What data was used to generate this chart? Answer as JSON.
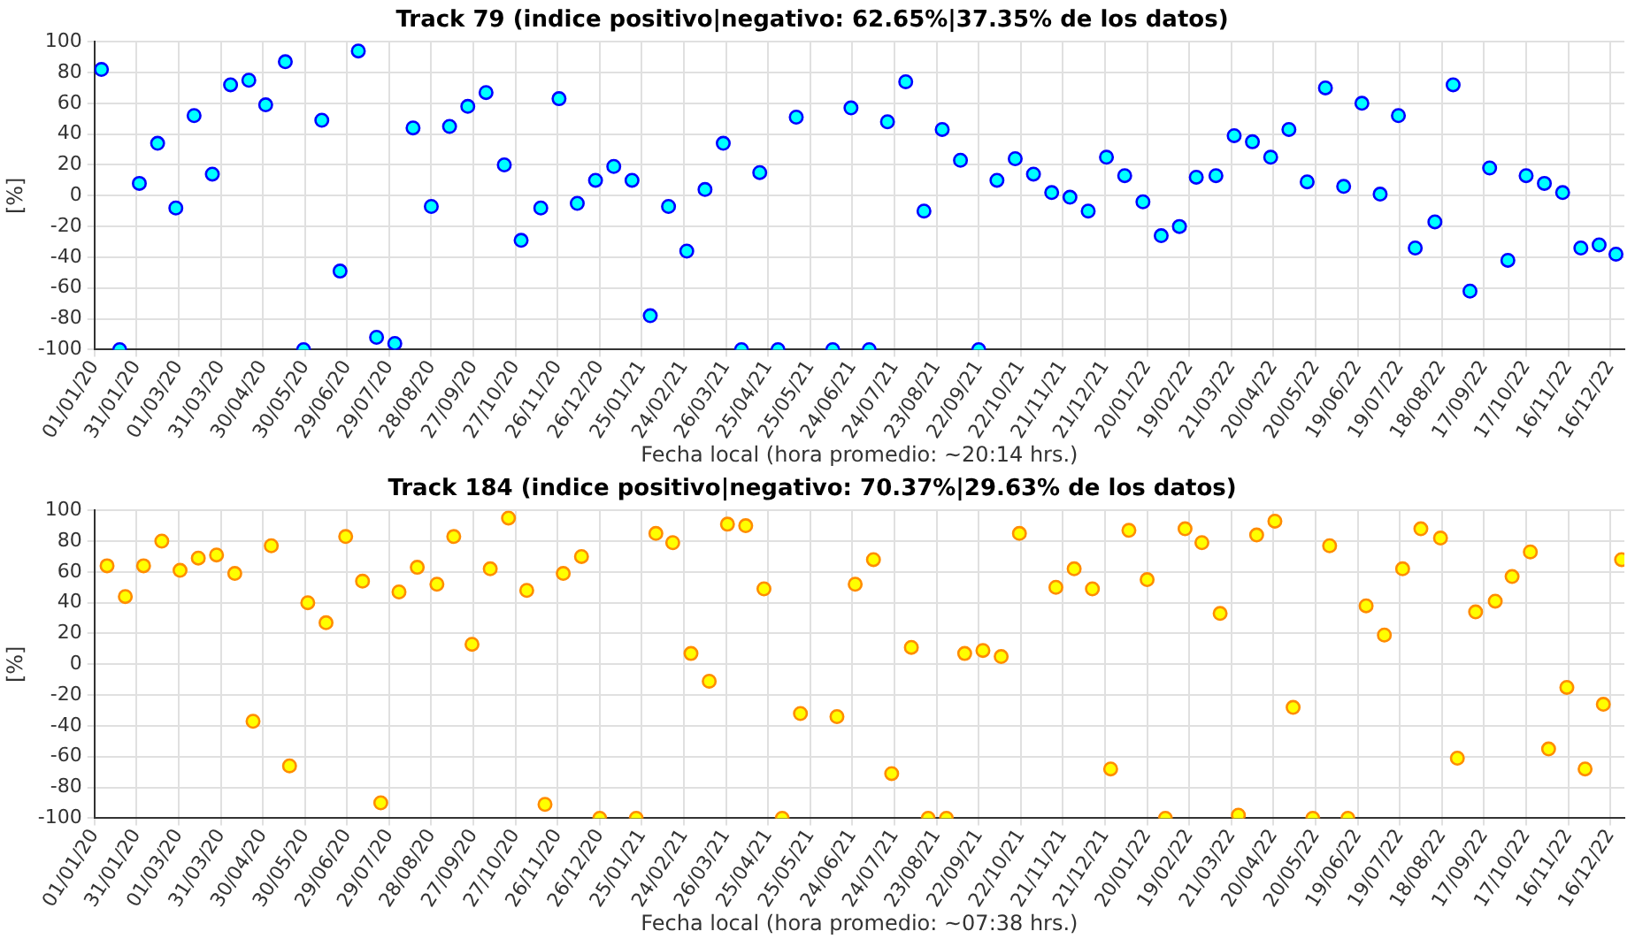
{
  "chart_data": [
    {
      "type": "scatter",
      "title": "Track 79 (indice positivo|negativo: 62.65%|37.35% de los datos)",
      "xlabel": "Fecha local (hora promedio: ~20:14 hrs.)",
      "ylabel": "[%]",
      "grid": true,
      "legend": false,
      "marker": "circle",
      "xlim": [
        "2020-01-01",
        "2022-12-26"
      ],
      "ylim": [
        -100,
        100
      ],
      "yticks": [
        -100,
        -80,
        -60,
        -40,
        -20,
        0,
        20,
        40,
        60,
        80,
        100
      ],
      "xticks": [
        {
          "value": "2020-01-01",
          "label": "01/01/20"
        },
        {
          "value": "2020-01-31",
          "label": "31/01/20"
        },
        {
          "value": "2020-03-01",
          "label": "01/03/20"
        },
        {
          "value": "2020-03-31",
          "label": "31/03/20"
        },
        {
          "value": "2020-04-30",
          "label": "30/04/20"
        },
        {
          "value": "2020-05-30",
          "label": "30/05/20"
        },
        {
          "value": "2020-06-29",
          "label": "29/06/20"
        },
        {
          "value": "2020-07-29",
          "label": "29/07/20"
        },
        {
          "value": "2020-08-28",
          "label": "28/08/20"
        },
        {
          "value": "2020-09-27",
          "label": "27/09/20"
        },
        {
          "value": "2020-10-27",
          "label": "27/10/20"
        },
        {
          "value": "2020-11-26",
          "label": "26/11/20"
        },
        {
          "value": "2020-12-26",
          "label": "26/12/20"
        },
        {
          "value": "2021-01-25",
          "label": "25/01/21"
        },
        {
          "value": "2021-02-24",
          "label": "24/02/21"
        },
        {
          "value": "2021-03-26",
          "label": "26/03/21"
        },
        {
          "value": "2021-04-25",
          "label": "25/04/21"
        },
        {
          "value": "2021-05-25",
          "label": "25/05/21"
        },
        {
          "value": "2021-06-24",
          "label": "24/06/21"
        },
        {
          "value": "2021-07-24",
          "label": "24/07/21"
        },
        {
          "value": "2021-08-23",
          "label": "23/08/21"
        },
        {
          "value": "2021-09-22",
          "label": "22/09/21"
        },
        {
          "value": "2021-10-22",
          "label": "22/10/21"
        },
        {
          "value": "2021-11-21",
          "label": "21/11/21"
        },
        {
          "value": "2021-12-21",
          "label": "21/12/21"
        },
        {
          "value": "2022-01-20",
          "label": "20/01/22"
        },
        {
          "value": "2022-02-19",
          "label": "19/02/22"
        },
        {
          "value": "2022-03-21",
          "label": "21/03/22"
        },
        {
          "value": "2022-04-20",
          "label": "20/04/22"
        },
        {
          "value": "2022-05-20",
          "label": "20/05/22"
        },
        {
          "value": "2022-06-19",
          "label": "19/06/22"
        },
        {
          "value": "2022-07-19",
          "label": "19/07/22"
        },
        {
          "value": "2022-08-18",
          "label": "18/08/22"
        },
        {
          "value": "2022-09-17",
          "label": "17/09/22"
        },
        {
          "value": "2022-10-17",
          "label": "17/10/22"
        },
        {
          "value": "2022-11-16",
          "label": "16/11/22"
        },
        {
          "value": "2022-12-16",
          "label": "16/12/22"
        }
      ],
      "series": [
        {
          "color": "#00ffff",
          "x": [
            "2020-01-06",
            "2020-01-19",
            "2020-02-02",
            "2020-02-15",
            "2020-02-28",
            "2020-03-12",
            "2020-03-25",
            "2020-04-07",
            "2020-04-20",
            "2020-05-02",
            "2020-05-16",
            "2020-05-29",
            "2020-06-11",
            "2020-06-24",
            "2020-07-07",
            "2020-07-20",
            "2020-08-02",
            "2020-08-15",
            "2020-08-28",
            "2020-09-10",
            "2020-09-23",
            "2020-10-06",
            "2020-10-19",
            "2020-10-31",
            "2020-11-14",
            "2020-11-27",
            "2020-12-10",
            "2020-12-23",
            "2021-01-05",
            "2021-01-18",
            "2021-01-31",
            "2021-02-13",
            "2021-02-26",
            "2021-03-11",
            "2021-03-24",
            "2021-04-06",
            "2021-04-19",
            "2021-05-02",
            "2021-05-15",
            "2021-06-10",
            "2021-06-23",
            "2021-07-06",
            "2021-07-19",
            "2021-08-01",
            "2021-08-14",
            "2021-08-27",
            "2021-09-09",
            "2021-09-22",
            "2021-10-05",
            "2021-10-18",
            "2021-10-31",
            "2021-11-13",
            "2021-11-26",
            "2021-12-09",
            "2021-12-22",
            "2022-01-04",
            "2022-01-17",
            "2022-01-30",
            "2022-02-12",
            "2022-02-24",
            "2022-03-10",
            "2022-03-23",
            "2022-04-05",
            "2022-04-18",
            "2022-05-01",
            "2022-05-14",
            "2022-05-27",
            "2022-06-09",
            "2022-06-22",
            "2022-07-05",
            "2022-07-18",
            "2022-07-30",
            "2022-08-13",
            "2022-08-26",
            "2022-09-07",
            "2022-09-21",
            "2022-10-04",
            "2022-10-17",
            "2022-10-30",
            "2022-11-12",
            "2022-11-25",
            "2022-12-08",
            "2022-12-20"
          ],
          "values": [
            82,
            -100,
            8,
            34,
            -8,
            52,
            14,
            72,
            75,
            59,
            87,
            -100,
            49,
            -49,
            94,
            -92,
            -96,
            44,
            -7,
            45,
            58,
            67,
            20,
            -29,
            -8,
            63,
            -5,
            10,
            19,
            10,
            -78,
            -7,
            -36,
            4,
            34,
            -100,
            15,
            -100,
            51,
            -100,
            57,
            -100,
            48,
            74,
            -10,
            43,
            23,
            -100,
            10,
            24,
            14,
            2,
            -1,
            -10,
            25,
            13,
            -4,
            -26,
            -20,
            12,
            13,
            39,
            35,
            25,
            43,
            9,
            70,
            6,
            60,
            1,
            52,
            -34,
            -17,
            72,
            -62,
            18,
            -42,
            13,
            8,
            2,
            -34,
            -32,
            -38
          ]
        }
      ]
    },
    {
      "type": "scatter",
      "title": "Track 184 (indice positivo|negativo: 70.37%|29.63% de los datos)",
      "xlabel": "Fecha local (hora promedio: ~07:38 hrs.)",
      "ylabel": "[%]",
      "grid": true,
      "legend": false,
      "marker": "circle",
      "xlim": [
        "2020-01-01",
        "2022-12-26"
      ],
      "ylim": [
        -100,
        100
      ],
      "yticks": [
        -100,
        -80,
        -60,
        -40,
        -20,
        0,
        20,
        40,
        60,
        80,
        100
      ],
      "xticks": [
        {
          "value": "2020-01-01",
          "label": "01/01/20"
        },
        {
          "value": "2020-01-31",
          "label": "31/01/20"
        },
        {
          "value": "2020-03-01",
          "label": "01/03/20"
        },
        {
          "value": "2020-03-31",
          "label": "31/03/20"
        },
        {
          "value": "2020-04-30",
          "label": "30/04/20"
        },
        {
          "value": "2020-05-30",
          "label": "30/05/20"
        },
        {
          "value": "2020-06-29",
          "label": "29/06/20"
        },
        {
          "value": "2020-07-29",
          "label": "29/07/20"
        },
        {
          "value": "2020-08-28",
          "label": "28/08/20"
        },
        {
          "value": "2020-09-27",
          "label": "27/09/20"
        },
        {
          "value": "2020-10-27",
          "label": "27/10/20"
        },
        {
          "value": "2020-11-26",
          "label": "26/11/20"
        },
        {
          "value": "2020-12-26",
          "label": "26/12/20"
        },
        {
          "value": "2021-01-25",
          "label": "25/01/21"
        },
        {
          "value": "2021-02-24",
          "label": "24/02/21"
        },
        {
          "value": "2021-03-26",
          "label": "26/03/21"
        },
        {
          "value": "2021-04-25",
          "label": "25/04/21"
        },
        {
          "value": "2021-05-25",
          "label": "25/05/21"
        },
        {
          "value": "2021-06-24",
          "label": "24/06/21"
        },
        {
          "value": "2021-07-24",
          "label": "24/07/21"
        },
        {
          "value": "2021-08-23",
          "label": "23/08/21"
        },
        {
          "value": "2021-09-22",
          "label": "22/09/21"
        },
        {
          "value": "2021-10-22",
          "label": "22/10/21"
        },
        {
          "value": "2021-11-21",
          "label": "21/11/21"
        },
        {
          "value": "2021-12-21",
          "label": "21/12/21"
        },
        {
          "value": "2022-01-20",
          "label": "20/01/22"
        },
        {
          "value": "2022-02-19",
          "label": "19/02/22"
        },
        {
          "value": "2022-03-21",
          "label": "21/03/22"
        },
        {
          "value": "2022-04-20",
          "label": "20/04/22"
        },
        {
          "value": "2022-05-20",
          "label": "20/05/22"
        },
        {
          "value": "2022-06-19",
          "label": "19/06/22"
        },
        {
          "value": "2022-07-19",
          "label": "19/07/22"
        },
        {
          "value": "2022-08-18",
          "label": "18/08/22"
        },
        {
          "value": "2022-09-17",
          "label": "17/09/22"
        },
        {
          "value": "2022-10-17",
          "label": "17/10/22"
        },
        {
          "value": "2022-11-16",
          "label": "16/11/22"
        },
        {
          "value": "2022-12-16",
          "label": "16/12/22"
        }
      ],
      "series": [
        {
          "color": "#ffff00",
          "x": [
            "2020-01-10",
            "2020-01-23",
            "2020-02-05",
            "2020-02-18",
            "2020-03-02",
            "2020-03-15",
            "2020-03-28",
            "2020-04-10",
            "2020-04-23",
            "2020-05-06",
            "2020-05-19",
            "2020-06-01",
            "2020-06-14",
            "2020-06-28",
            "2020-07-10",
            "2020-07-23",
            "2020-08-05",
            "2020-08-18",
            "2020-09-01",
            "2020-09-13",
            "2020-09-26",
            "2020-10-09",
            "2020-10-22",
            "2020-11-04",
            "2020-11-17",
            "2020-11-30",
            "2020-12-13",
            "2020-12-26",
            "2021-01-21",
            "2021-02-04",
            "2021-02-16",
            "2021-03-01",
            "2021-03-14",
            "2021-03-27",
            "2021-04-09",
            "2021-04-22",
            "2021-05-05",
            "2021-05-18",
            "2021-06-13",
            "2021-06-26",
            "2021-07-09",
            "2021-07-22",
            "2021-08-05",
            "2021-08-17",
            "2021-08-30",
            "2021-09-12",
            "2021-09-25",
            "2021-10-08",
            "2021-10-21",
            "2021-11-16",
            "2021-11-29",
            "2021-12-12",
            "2021-12-25",
            "2022-01-07",
            "2022-01-20",
            "2022-02-02",
            "2022-02-16",
            "2022-02-28",
            "2022-03-13",
            "2022-03-26",
            "2022-04-08",
            "2022-04-21",
            "2022-05-04",
            "2022-05-18",
            "2022-05-30",
            "2022-06-12",
            "2022-06-25",
            "2022-07-08",
            "2022-07-21",
            "2022-08-03",
            "2022-08-17",
            "2022-08-29",
            "2022-09-11",
            "2022-09-25",
            "2022-10-07",
            "2022-10-20",
            "2022-11-02",
            "2022-11-15",
            "2022-11-28",
            "2022-12-11",
            "2022-12-24"
          ],
          "values": [
            64,
            44,
            64,
            80,
            61,
            69,
            71,
            59,
            -37,
            77,
            -66,
            40,
            27,
            83,
            54,
            -90,
            47,
            63,
            52,
            83,
            13,
            62,
            95,
            48,
            -91,
            59,
            70,
            -100,
            -100,
            85,
            79,
            7,
            -11,
            91,
            90,
            49,
            -100,
            -32,
            -34,
            52,
            68,
            -71,
            11,
            -100,
            -100,
            7,
            9,
            5,
            85,
            50,
            62,
            49,
            -68,
            87,
            55,
            -100,
            88,
            79,
            33,
            -98,
            84,
            93,
            -28,
            -100,
            77,
            -100,
            38,
            19,
            62,
            88,
            82,
            -61,
            34,
            41,
            57,
            73,
            -55,
            -15,
            -68,
            -26,
            68
          ]
        }
      ]
    }
  ]
}
